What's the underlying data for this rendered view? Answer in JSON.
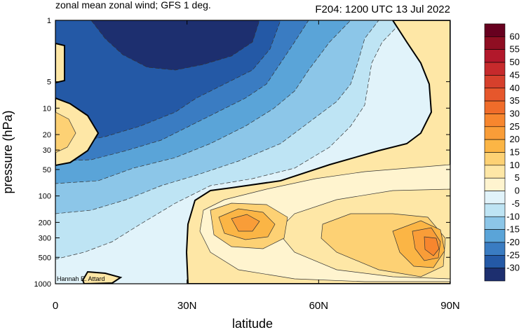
{
  "chart_data": {
    "type": "contour",
    "title_left": "zonal mean zonal wind; GFS 1 deg.",
    "title_right": "F204: 1200 UTC 13 Jul 2022",
    "xlabel": "latitude",
    "ylabel": "pressure (hPa)",
    "credit": "Hannah E. Attard",
    "x_axis": {
      "range": [
        0,
        90
      ],
      "ticks": [
        0,
        30,
        60,
        90
      ],
      "tick_labels": [
        "0",
        "30N",
        "60N",
        "90N"
      ]
    },
    "y_axis": {
      "scale": "log",
      "range": [
        1000,
        1
      ],
      "ticks": [
        1,
        5,
        10,
        20,
        30,
        50,
        100,
        200,
        300,
        500,
        1000
      ],
      "tick_labels": [
        "1",
        "5",
        "10",
        "20",
        "30",
        "50",
        "100",
        "200",
        "300",
        "500",
        "1000"
      ]
    },
    "colorbar": {
      "levels": [
        "60",
        "55",
        "50",
        "45",
        "40",
        "35",
        "30",
        "25",
        "20",
        "15",
        "10",
        "5",
        "0",
        "-5",
        "-10",
        "-15",
        "-20",
        "-25",
        "-30"
      ],
      "colors": [
        "#67001f",
        "#8f0e22",
        "#b2182b",
        "#c62a2c",
        "#d6402c",
        "#e6572c",
        "#f06c2a",
        "#f7862e",
        "#f99d38",
        "#fbb545",
        "#fdd174",
        "#fee7a6",
        "#fff4cf",
        "#e1f3fa",
        "#bee4f4",
        "#8cc6e8",
        "#5aa4d8",
        "#3a7cc2",
        "#2459a6",
        "#1d2f6f"
      ]
    },
    "regions": [
      {
        "label": "westerly jet core ~40N 200 hPa",
        "lat": 42,
        "p": 200,
        "max": 25
      },
      {
        "label": "polar westerly max ~86N 400 hPa",
        "lat": 86,
        "p": 400,
        "max": 25
      },
      {
        "label": "stratospheric easterlies",
        "lat": 25,
        "p": 1,
        "min": -30
      },
      {
        "label": "equatorial westerlies",
        "lat": 1,
        "p": 20,
        "max": 15
      }
    ]
  }
}
